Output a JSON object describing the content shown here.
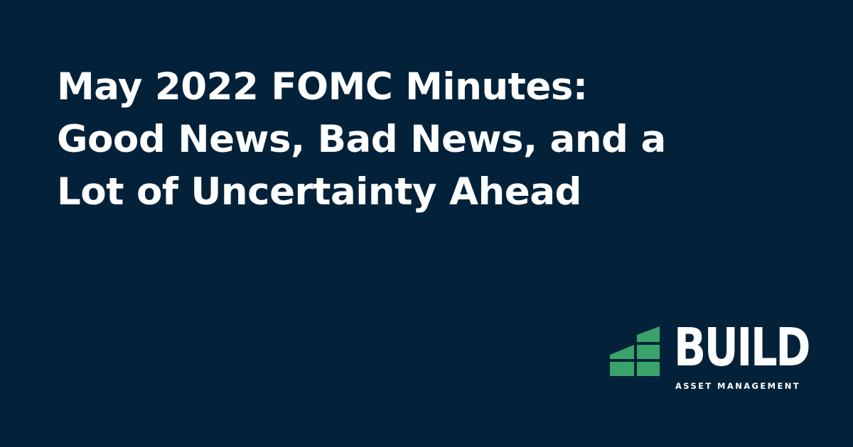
{
  "headline": "May 2022 FOMC Minutes: Good News, Bad News, and a Lot of Uncertainty Ahead",
  "brand": {
    "name": "BUILD",
    "subtitle": "ASSET MANAGEMENT",
    "logo_icon": "stair-step-building-icon",
    "logo_color": "#3aa36a"
  },
  "colors": {
    "background": "#03223a",
    "text": "#ffffff",
    "accent": "#3aa36a"
  }
}
